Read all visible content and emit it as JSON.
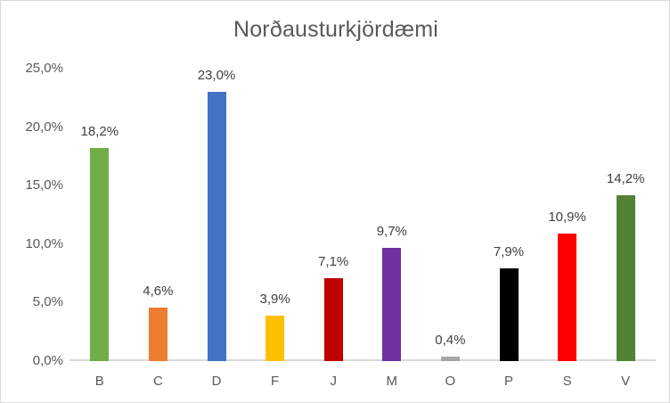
{
  "chart": {
    "colors": {
      "background": "#ffffff",
      "border": "#d9d9d9",
      "axis_line": "#d9d9d9",
      "title_text": "#595959",
      "axis_text": "#595959",
      "data_label_text": "#404040"
    }
  },
  "chart_data": {
    "type": "bar",
    "title": "Norðausturkjördæmi",
    "categories": [
      "B",
      "C",
      "D",
      "F",
      "J",
      "M",
      "O",
      "P",
      "S",
      "V"
    ],
    "values": [
      18.2,
      4.6,
      23.0,
      3.9,
      7.1,
      9.7,
      0.4,
      7.9,
      10.9,
      14.2
    ],
    "value_labels": [
      "18,2%",
      "4,6%",
      "23,0%",
      "3,9%",
      "7,1%",
      "9,7%",
      "0,4%",
      "7,9%",
      "10,9%",
      "14,2%"
    ],
    "bar_colors": [
      "#70ad47",
      "#ed7d31",
      "#4472c4",
      "#ffc000",
      "#c00000",
      "#7030a0",
      "#a6a6a6",
      "#000000",
      "#ff0000",
      "#548235"
    ],
    "xlabel": "",
    "ylabel": "",
    "ylim": [
      0,
      25
    ],
    "ytick_interval": 5,
    "ytick_labels": [
      "0,0%",
      "5,0%",
      "10,0%",
      "15,0%",
      "20,0%",
      "25,0%"
    ],
    "grid": false,
    "legend": false,
    "data_labels_shown": true
  }
}
